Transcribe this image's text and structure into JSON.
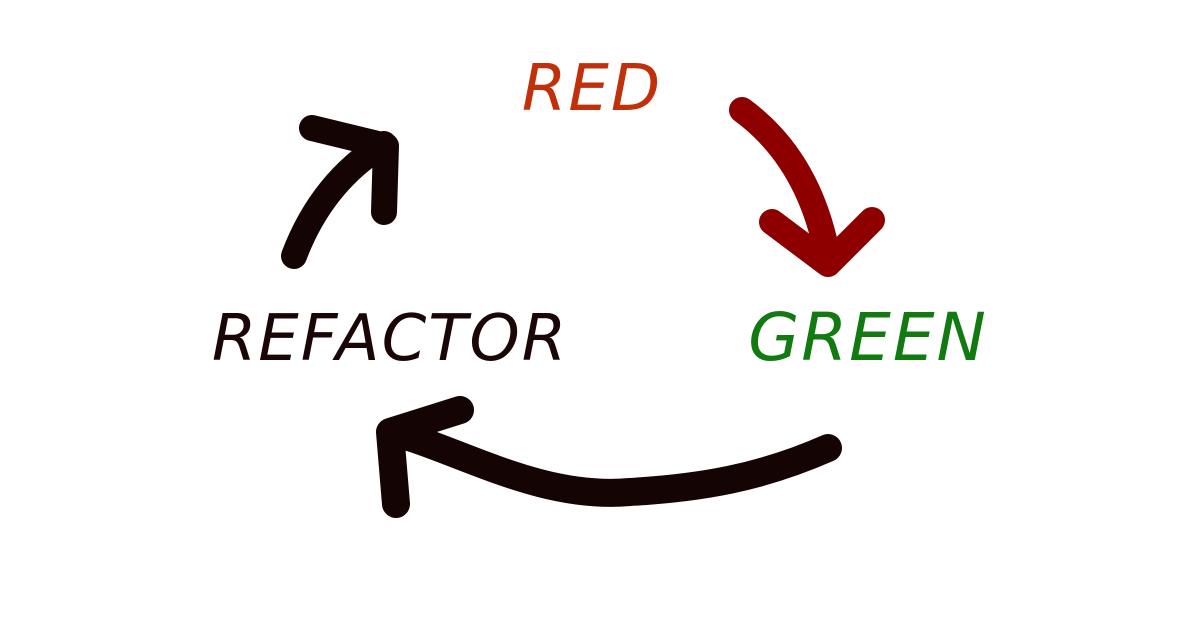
{
  "stages": {
    "red": {
      "label": "RED",
      "color": "#c0300a"
    },
    "green": {
      "label": "GREEN",
      "color": "#117a11"
    },
    "refactor": {
      "label": "REFACTOR",
      "color": "#1a0606"
    }
  },
  "arrows": {
    "red_to_green": {
      "color": "#8e0000"
    },
    "green_to_refactor": {
      "color": "#140404"
    },
    "refactor_to_red": {
      "color": "#140404"
    }
  }
}
